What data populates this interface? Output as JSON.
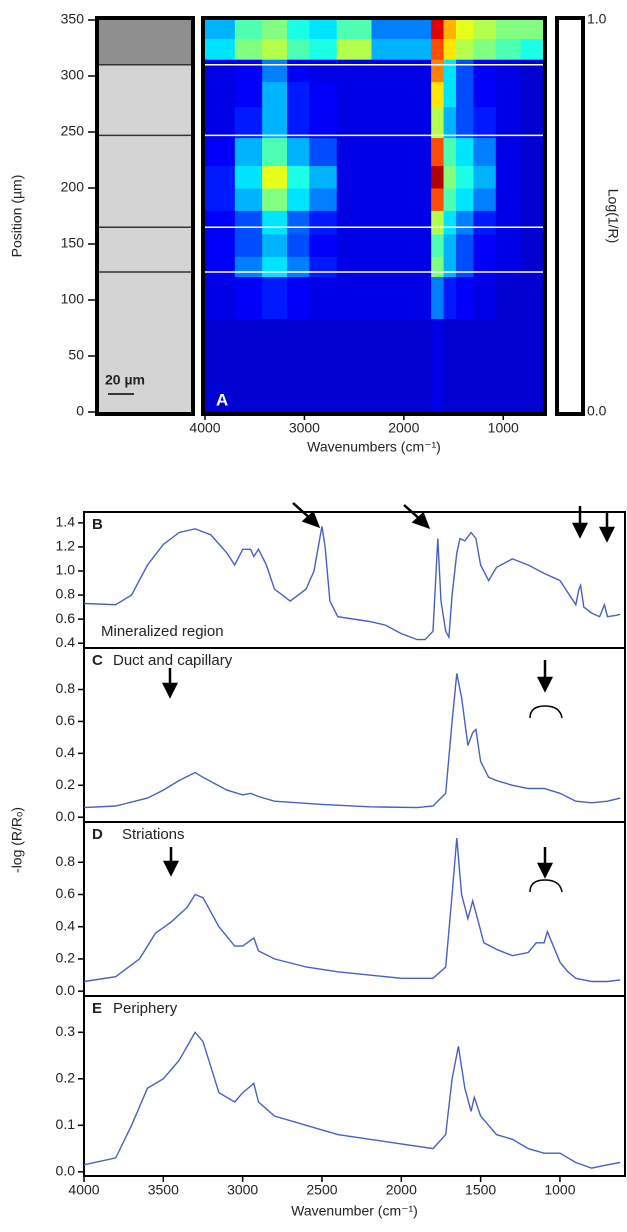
{
  "chart_data": [
    {
      "type": "heatmap",
      "label": "A",
      "xlabel": "Wavenumbers (cm⁻¹)",
      "ylabel": "Position (µm)",
      "scale_bar": "20 µm",
      "colorbar_label": "Log(1/R)",
      "colormap": "jet",
      "zticks": [
        {
          "value": 1,
          "label": "1.0"
        },
        {
          "value": 0,
          "label": "0.0"
        }
      ],
      "xlim": [
        4000,
        600
      ],
      "ylim": [
        0,
        350
      ],
      "xticks": [
        4000,
        3000,
        2000,
        1000
      ],
      "yticks": [
        0,
        50,
        100,
        150,
        200,
        250,
        300,
        350
      ],
      "boundaries": [
        125,
        165,
        247,
        310
      ],
      "x": [
        3850,
        3550,
        3300,
        3050,
        2850,
        2500,
        2150,
        1800,
        1650,
        1550,
        1400,
        1200,
        950,
        700
      ],
      "y": [
        55,
        112,
        130,
        148,
        170,
        190,
        210,
        230,
        260,
        285,
        305,
        325,
        342
      ],
      "z": [
        [
          0.08,
          0.08,
          0.08,
          0.08,
          0.08,
          0.08,
          0.08,
          0.08,
          0.1,
          0.08,
          0.08,
          0.08,
          0.08,
          0.08
        ],
        [
          0.1,
          0.12,
          0.15,
          0.12,
          0.1,
          0.1,
          0.1,
          0.1,
          0.25,
          0.15,
          0.12,
          0.1,
          0.08,
          0.08
        ],
        [
          0.12,
          0.25,
          0.35,
          0.25,
          0.15,
          0.1,
          0.1,
          0.1,
          0.5,
          0.3,
          0.2,
          0.12,
          0.1,
          0.08
        ],
        [
          0.12,
          0.2,
          0.3,
          0.2,
          0.12,
          0.1,
          0.1,
          0.1,
          0.45,
          0.3,
          0.2,
          0.12,
          0.1,
          0.08
        ],
        [
          0.12,
          0.2,
          0.35,
          0.22,
          0.15,
          0.1,
          0.1,
          0.1,
          0.55,
          0.35,
          0.25,
          0.15,
          0.1,
          0.08
        ],
        [
          0.15,
          0.3,
          0.5,
          0.35,
          0.25,
          0.1,
          0.1,
          0.1,
          0.8,
          0.45,
          0.35,
          0.25,
          0.1,
          0.08
        ],
        [
          0.15,
          0.35,
          0.6,
          0.4,
          0.3,
          0.1,
          0.1,
          0.1,
          0.95,
          0.5,
          0.4,
          0.3,
          0.1,
          0.08
        ],
        [
          0.12,
          0.3,
          0.45,
          0.3,
          0.2,
          0.1,
          0.1,
          0.1,
          0.8,
          0.45,
          0.35,
          0.25,
          0.1,
          0.08
        ],
        [
          0.1,
          0.15,
          0.3,
          0.15,
          0.12,
          0.1,
          0.1,
          0.1,
          0.55,
          0.3,
          0.2,
          0.15,
          0.1,
          0.08
        ],
        [
          0.1,
          0.12,
          0.3,
          0.15,
          0.12,
          0.1,
          0.1,
          0.1,
          0.65,
          0.35,
          0.2,
          0.12,
          0.1,
          0.08
        ],
        [
          0.1,
          0.12,
          0.25,
          0.12,
          0.1,
          0.1,
          0.1,
          0.1,
          0.75,
          0.35,
          0.2,
          0.12,
          0.1,
          0.08
        ],
        [
          0.35,
          0.5,
          0.55,
          0.45,
          0.4,
          0.55,
          0.3,
          0.3,
          0.8,
          0.65,
          0.55,
          0.5,
          0.45,
          0.4
        ],
        [
          0.3,
          0.45,
          0.5,
          0.4,
          0.35,
          0.45,
          0.25,
          0.25,
          0.9,
          0.7,
          0.6,
          0.55,
          0.5,
          0.5
        ]
      ]
    },
    {
      "type": "line",
      "label": "B",
      "title": "Mineralized region",
      "color": "#4a5fc1",
      "xlim": [
        4000,
        590
      ],
      "ylim": [
        0.36,
        1.49
      ],
      "yticks": [
        0.4,
        0.6,
        0.8,
        {
          "value": 1,
          "label": "1.0"
        },
        1.2,
        1.4
      ],
      "x": [
        4000,
        3800,
        3700,
        3600,
        3500,
        3400,
        3300,
        3200,
        3100,
        3050,
        3000,
        2950,
        2930,
        2900,
        2850,
        2800,
        2700,
        2600,
        2550,
        2510,
        2500,
        2480,
        2450,
        2400,
        2200,
        2100,
        2000,
        1900,
        1850,
        1800,
        1770,
        1750,
        1720,
        1700,
        1680,
        1650,
        1630,
        1600,
        1560,
        1530,
        1500,
        1450,
        1400,
        1300,
        1200,
        1100,
        1000,
        950,
        900,
        880,
        870,
        850,
        800,
        750,
        720,
        700,
        650,
        620
      ],
      "values": [
        0.73,
        0.72,
        0.8,
        1.05,
        1.22,
        1.32,
        1.35,
        1.3,
        1.15,
        1.05,
        1.18,
        1.18,
        1.12,
        1.18,
        1.05,
        0.85,
        0.75,
        0.85,
        1.0,
        1.3,
        1.37,
        1.2,
        0.75,
        0.62,
        0.58,
        0.55,
        0.48,
        0.43,
        0.43,
        0.5,
        1.27,
        0.75,
        0.5,
        0.45,
        0.8,
        1.15,
        1.27,
        1.25,
        1.32,
        1.27,
        1.05,
        0.92,
        1.03,
        1.1,
        1.05,
        0.98,
        0.92,
        0.82,
        0.72,
        0.85,
        0.88,
        0.7,
        0.65,
        0.62,
        0.72,
        0.62,
        0.63,
        0.64
      ]
    },
    {
      "type": "line",
      "label": "C",
      "title": "Duct and capillary",
      "ylabel": "-log (R/Rₒ)",
      "color": "#4a5fc1",
      "xlim": [
        4000,
        590
      ],
      "ylim": [
        -0.03,
        1.06
      ],
      "yticks": [
        {
          "value": 0,
          "label": "0.0"
        },
        0.2,
        0.4,
        0.6,
        0.8
      ],
      "x": [
        4000,
        3800,
        3600,
        3500,
        3400,
        3300,
        3250,
        3100,
        3000,
        2950,
        2900,
        2800,
        2500,
        2200,
        1900,
        1800,
        1720,
        1680,
        1650,
        1620,
        1580,
        1550,
        1530,
        1500,
        1450,
        1400,
        1300,
        1200,
        1100,
        1000,
        900,
        800,
        700,
        620
      ],
      "values": [
        0.06,
        0.07,
        0.12,
        0.17,
        0.23,
        0.28,
        0.25,
        0.17,
        0.14,
        0.15,
        0.13,
        0.1,
        0.08,
        0.065,
        0.06,
        0.07,
        0.15,
        0.6,
        0.9,
        0.75,
        0.45,
        0.53,
        0.55,
        0.35,
        0.25,
        0.23,
        0.2,
        0.18,
        0.18,
        0.15,
        0.1,
        0.09,
        0.1,
        0.12
      ]
    },
    {
      "type": "line",
      "label": "D",
      "title": "Striations",
      "color": "#4a5fc1",
      "xlim": [
        4000,
        590
      ],
      "ylim": [
        -0.03,
        1.05
      ],
      "yticks": [
        {
          "value": 0,
          "label": "0.0"
        },
        0.2,
        0.4,
        0.6,
        0.8
      ],
      "x": [
        4000,
        3800,
        3650,
        3550,
        3450,
        3350,
        3300,
        3250,
        3150,
        3050,
        3000,
        2930,
        2900,
        2800,
        2600,
        2400,
        2200,
        2000,
        1800,
        1720,
        1680,
        1650,
        1620,
        1580,
        1550,
        1520,
        1480,
        1400,
        1300,
        1200,
        1150,
        1100,
        1080,
        1050,
        1000,
        950,
        900,
        800,
        700,
        620
      ],
      "values": [
        0.06,
        0.09,
        0.2,
        0.36,
        0.43,
        0.52,
        0.6,
        0.58,
        0.4,
        0.28,
        0.28,
        0.33,
        0.25,
        0.2,
        0.15,
        0.12,
        0.1,
        0.08,
        0.08,
        0.15,
        0.6,
        0.95,
        0.6,
        0.45,
        0.56,
        0.45,
        0.3,
        0.26,
        0.22,
        0.24,
        0.3,
        0.3,
        0.37,
        0.3,
        0.18,
        0.12,
        0.08,
        0.06,
        0.06,
        0.07
      ]
    },
    {
      "type": "line",
      "label": "E",
      "title": "Periphery",
      "xlabel": "Wavenumber (cm⁻¹)",
      "color": "#4a5fc1",
      "xlim": [
        4000,
        590
      ],
      "ylim": [
        -0.009,
        0.378
      ],
      "xticks": [
        4000,
        3500,
        3000,
        2500,
        2000,
        1500,
        1000
      ],
      "yticks": [
        {
          "value": 0,
          "label": "0.0"
        },
        0.1,
        0.2,
        0.3
      ],
      "x": [
        4000,
        3800,
        3700,
        3600,
        3500,
        3400,
        3300,
        3250,
        3150,
        3050,
        3000,
        2930,
        2900,
        2800,
        2600,
        2400,
        2200,
        2000,
        1800,
        1720,
        1680,
        1640,
        1600,
        1560,
        1540,
        1500,
        1450,
        1400,
        1300,
        1200,
        1100,
        1000,
        900,
        800,
        700,
        620
      ],
      "values": [
        0.015,
        0.03,
        0.1,
        0.18,
        0.2,
        0.24,
        0.3,
        0.28,
        0.17,
        0.15,
        0.17,
        0.19,
        0.15,
        0.12,
        0.1,
        0.08,
        0.07,
        0.06,
        0.05,
        0.08,
        0.2,
        0.27,
        0.18,
        0.13,
        0.16,
        0.12,
        0.1,
        0.08,
        0.07,
        0.05,
        0.04,
        0.04,
        0.02,
        0.008,
        0.015,
        0.02
      ]
    }
  ]
}
